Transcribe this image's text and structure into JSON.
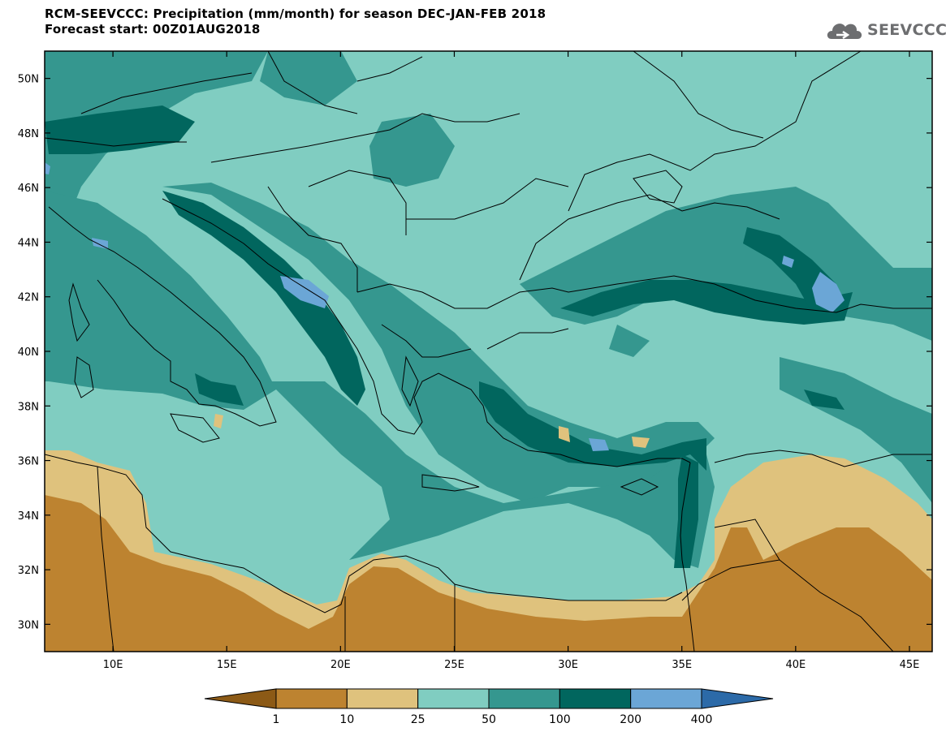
{
  "header": {
    "title_line1": "RCM-SEEVCCC: Precipitation (mm/month) for season DEC-JAN-FEB 2018",
    "title_line2": "Forecast start: 00Z01AUG2018"
  },
  "logo": {
    "text": "SEEVCCC",
    "icon": "cloud-icon"
  },
  "map": {
    "lat_ticks": [
      "50N",
      "48N",
      "46N",
      "44N",
      "42N",
      "40N",
      "38N",
      "36N",
      "34N",
      "32N",
      "30N"
    ],
    "lat_values": [
      50,
      48,
      46,
      44,
      42,
      40,
      38,
      36,
      34,
      32,
      30
    ],
    "lon_ticks": [
      "10E",
      "15E",
      "20E",
      "25E",
      "30E",
      "35E",
      "40E",
      "45E"
    ],
    "lon_values": [
      10,
      15,
      20,
      25,
      30,
      35,
      40,
      45
    ],
    "lon_range": [
      7,
      46
    ],
    "lat_range": [
      29,
      51
    ]
  },
  "colorbar": {
    "labels": [
      "1",
      "10",
      "25",
      "50",
      "100",
      "200",
      "400"
    ],
    "colors": [
      "#8c5a16",
      "#bd8330",
      "#dfc27d",
      "#80cdc1",
      "#35978f",
      "#01665e",
      "#6ba6d6",
      "#2c6aa8"
    ]
  },
  "colors": {
    "ocean": "#80cdc1",
    "dry_land": "#bd8330",
    "semi_dry": "#dfc27d",
    "moderate": "#35978f",
    "wet": "#01665e",
    "very_wet": "#6ba6d6",
    "border_line": "#000000",
    "frame": "#000000"
  }
}
